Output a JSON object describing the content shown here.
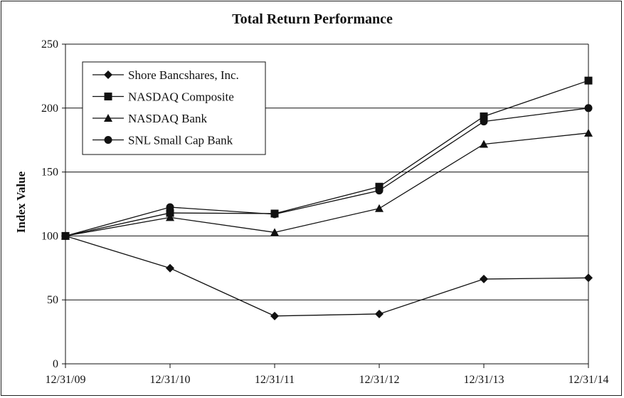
{
  "chart_data": {
    "type": "line",
    "title": "Total Return Performance",
    "xlabel": "",
    "ylabel": "Index Value",
    "categories": [
      "12/31/09",
      "12/31/10",
      "12/31/11",
      "12/31/12",
      "12/31/13",
      "12/31/14"
    ],
    "ylim": [
      0,
      250
    ],
    "yticks": [
      0,
      50,
      100,
      150,
      200,
      250
    ],
    "grid": "horizontal",
    "legend_position": "top-left",
    "series": [
      {
        "name": "Shore Bancshares, Inc.",
        "marker": "diamond",
        "values": [
          100,
          74.8,
          37.4,
          39.0,
          66.3,
          67.2
        ]
      },
      {
        "name": "NASDAQ Composite",
        "marker": "square",
        "values": [
          100,
          118.0,
          117.5,
          138.5,
          193.5,
          221.5
        ]
      },
      {
        "name": "NASDAQ Bank",
        "marker": "triangle",
        "values": [
          100,
          114.5,
          102.8,
          121.5,
          171.8,
          180.5
        ]
      },
      {
        "name": "SNL Small Cap Bank",
        "marker": "circle",
        "values": [
          100,
          122.5,
          117.0,
          135.5,
          189.5,
          200.0
        ]
      }
    ],
    "colors": {
      "line": "#111111",
      "grid": "#111111",
      "background": "#ffffff"
    }
  }
}
